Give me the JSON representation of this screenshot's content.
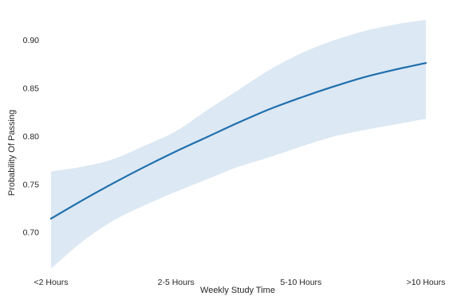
{
  "chart_data": {
    "type": "line",
    "xlabel": "Weekly Study Time",
    "ylabel": "Probability Of Passing",
    "categories": [
      "<2 Hours",
      "2-5 Hours",
      "5-10 Hours",
      ">10 Hours"
    ],
    "yticks": [
      0.7,
      0.75,
      0.8,
      0.85,
      0.9
    ],
    "ylim": [
      0.655,
      0.925
    ],
    "grid": false,
    "colors": {
      "line": "#1f6fad",
      "band": "#dce8f3"
    },
    "curve": {
      "x": [
        0,
        0.25,
        0.5,
        0.75,
        1.0,
        1.25,
        1.5,
        1.75,
        2.0,
        2.25,
        2.5,
        2.75,
        3.0
      ],
      "y": [
        0.714,
        0.733,
        0.751,
        0.768,
        0.784,
        0.799,
        0.814,
        0.828,
        0.84,
        0.851,
        0.861,
        0.869,
        0.876
      ],
      "lower": [
        0.662,
        0.69,
        0.712,
        0.728,
        0.742,
        0.755,
        0.768,
        0.778,
        0.789,
        0.799,
        0.806,
        0.812,
        0.818
      ],
      "upper": [
        0.763,
        0.768,
        0.776,
        0.79,
        0.805,
        0.827,
        0.848,
        0.869,
        0.886,
        0.899,
        0.909,
        0.916,
        0.921
      ]
    }
  }
}
